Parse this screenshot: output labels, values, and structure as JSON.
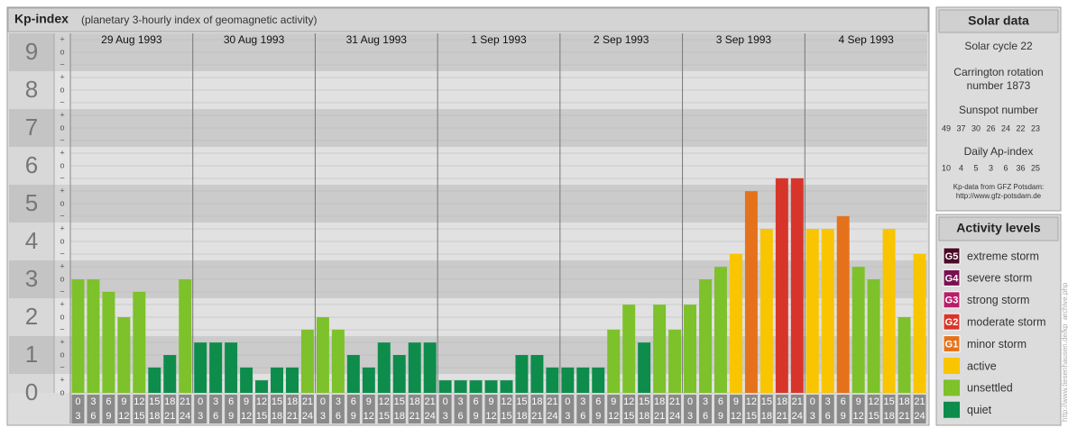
{
  "chart_data": {
    "type": "bar",
    "title": "Kp-index",
    "subtitle": "(planetary 3-hourly index of geomagnetic activity)",
    "days": [
      "29 Aug 1993",
      "30 Aug 1993",
      "31 Aug 1993",
      "1 Sep 1993",
      "2 Sep 1993",
      "3 Sep 1993",
      "4 Sep 1993"
    ],
    "hours": [
      [
        "0",
        "3"
      ],
      [
        "3",
        "6"
      ],
      [
        "6",
        "9"
      ],
      [
        "9",
        "12"
      ],
      [
        "12",
        "15"
      ],
      [
        "15",
        "18"
      ],
      [
        "18",
        "21"
      ],
      [
        "21",
        "24"
      ]
    ],
    "values": [
      3,
      3,
      2.67,
      2,
      2.67,
      0.67,
      1,
      3,
      1.33,
      1.33,
      1.33,
      0.67,
      0.33,
      0.67,
      0.67,
      1.67,
      2,
      1.67,
      1,
      0.67,
      1.33,
      1,
      1.33,
      1.33,
      0.33,
      0.33,
      0.33,
      0.33,
      0.33,
      1,
      1,
      0.67,
      0.67,
      0.67,
      0.67,
      1.67,
      2.33,
      1.33,
      2.33,
      1.67,
      2.33,
      3,
      3.33,
      3.67,
      5.33,
      4.33,
      5.67,
      5.67,
      4.33,
      4.33,
      4.67,
      3.33,
      3,
      4.33,
      2,
      3.67
    ],
    "colors": [
      "#7dc12b",
      "#7dc12b",
      "#7dc12b",
      "#7dc12b",
      "#7dc12b",
      "#0e8c4b",
      "#0e8c4b",
      "#7dc12b",
      "#0e8c4b",
      "#0e8c4b",
      "#0e8c4b",
      "#0e8c4b",
      "#0e8c4b",
      "#0e8c4b",
      "#0e8c4b",
      "#7dc12b",
      "#7dc12b",
      "#7dc12b",
      "#0e8c4b",
      "#0e8c4b",
      "#0e8c4b",
      "#0e8c4b",
      "#0e8c4b",
      "#0e8c4b",
      "#0e8c4b",
      "#0e8c4b",
      "#0e8c4b",
      "#0e8c4b",
      "#0e8c4b",
      "#0e8c4b",
      "#0e8c4b",
      "#0e8c4b",
      "#0e8c4b",
      "#0e8c4b",
      "#0e8c4b",
      "#7dc12b",
      "#7dc12b",
      "#0e8c4b",
      "#7dc12b",
      "#7dc12b",
      "#7dc12b",
      "#7dc12b",
      "#7dc12b",
      "#f8c500",
      "#e5721b",
      "#f8c500",
      "#d8352a",
      "#d8352a",
      "#f8c500",
      "#f8c500",
      "#e5721b",
      "#7dc12b",
      "#7dc12b",
      "#f8c500",
      "#7dc12b",
      "#f8c500"
    ],
    "ylim": [
      0,
      9.5
    ],
    "yticks": [
      0,
      1,
      2,
      3,
      4,
      5,
      6,
      7,
      8,
      9
    ],
    "minor_labels": [
      "−",
      "o",
      "+"
    ],
    "solar": {
      "title": "Solar data",
      "cycle": "Solar cycle 22",
      "carrington": [
        "Carrington rotation",
        "number 1873"
      ],
      "sunspot_title": "Sunspot number",
      "sunspot": [
        "49",
        "37",
        "30",
        "26",
        "24",
        "22",
        "23"
      ],
      "ap_title": "Daily Ap-index",
      "ap": [
        "10",
        "4",
        "5",
        "3",
        "6",
        "36",
        "25"
      ],
      "source": [
        "Kp-data from GFZ Potsdam:",
        "http://www.gfz-potsdam.de"
      ]
    },
    "legend": {
      "title": "Activity levels",
      "items": [
        {
          "badge": "G5",
          "label": "extreme storm",
          "color": "#4a0a24"
        },
        {
          "badge": "G4",
          "label": "severe storm",
          "color": "#7a1050"
        },
        {
          "badge": "G3",
          "label": "strong storm",
          "color": "#b81e6a"
        },
        {
          "badge": "G2",
          "label": "moderate storm",
          "color": "#d8352a"
        },
        {
          "badge": "G1",
          "label": "minor storm",
          "color": "#e5721b"
        },
        {
          "label": "active",
          "color": "#f8c500"
        },
        {
          "label": "unsettled",
          "color": "#7dc12b"
        },
        {
          "label": "quiet",
          "color": "#0e8c4b"
        }
      ]
    },
    "credit": "http://www.tiesenhausen.de/kp_archive.php"
  }
}
